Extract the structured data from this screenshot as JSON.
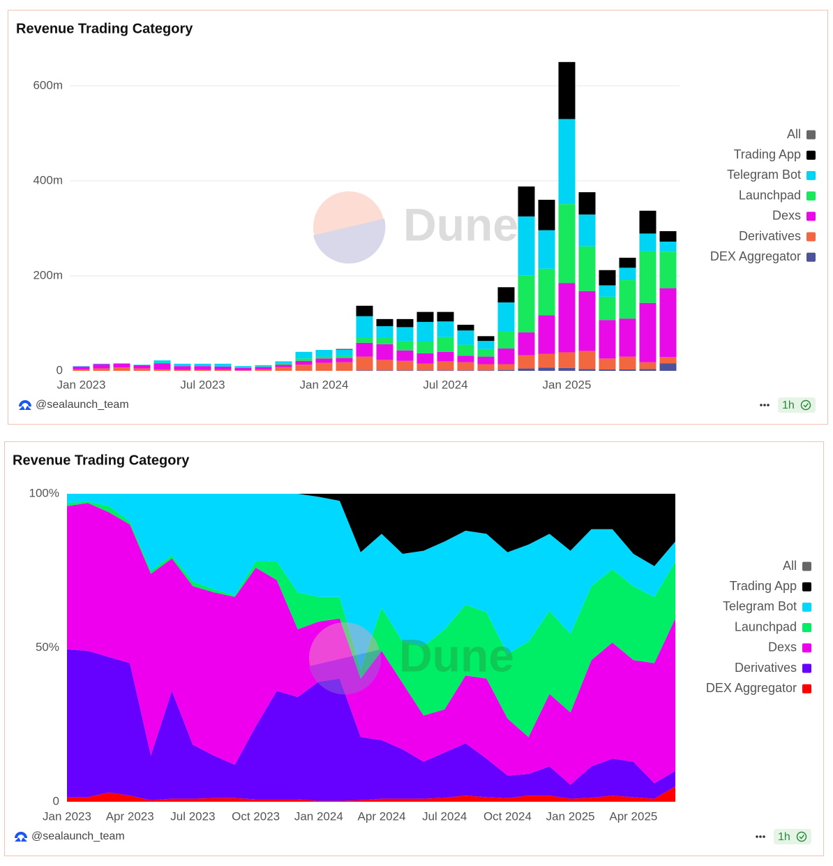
{
  "chart_data": [
    {
      "type": "bar",
      "stacked": true,
      "title": "Revenue Trading Category",
      "categories": [
        "Jan 2023",
        null,
        null,
        null,
        null,
        null,
        "Jul 2023",
        null,
        null,
        null,
        null,
        null,
        "Jan 2024",
        null,
        null,
        null,
        null,
        null,
        "Jul 2024",
        null,
        null,
        null,
        null,
        null,
        "Jan 2025",
        null,
        null,
        null,
        null,
        null
      ],
      "series": [
        {
          "name": "DEX Aggregator",
          "color": "#4d5399",
          "values": [
            0,
            0,
            0,
            0,
            0,
            0,
            0,
            0,
            0,
            0,
            0,
            0,
            0,
            0,
            1,
            1,
            1,
            1,
            1,
            1,
            1,
            2,
            5,
            7,
            6,
            4,
            3,
            3,
            4,
            16
          ]
        },
        {
          "name": "Derivatives",
          "color": "#f26640",
          "values": [
            3,
            5,
            7,
            5,
            3,
            2,
            2,
            2,
            1,
            3,
            8,
            13,
            17,
            18,
            29,
            22,
            20,
            14,
            19,
            17,
            13,
            12,
            28,
            29,
            33,
            38,
            23,
            27,
            14,
            13
          ]
        },
        {
          "name": "Dexs",
          "color": "#e80be8",
          "values": [
            6,
            9,
            8,
            7,
            13,
            8,
            8,
            7,
            5,
            5,
            5,
            8,
            9,
            9,
            29,
            33,
            22,
            22,
            20,
            14,
            16,
            33,
            48,
            81,
            146,
            126,
            81,
            80,
            125,
            145
          ]
        },
        {
          "name": "Launchpad",
          "color": "#17e85c",
          "values": [
            0,
            0,
            0,
            0,
            1,
            0,
            0,
            0,
            0,
            1,
            2,
            5,
            4,
            4,
            10,
            13,
            20,
            24,
            31,
            23,
            16,
            36,
            120,
            98,
            166,
            94,
            49,
            81,
            109,
            77
          ]
        },
        {
          "name": "Telegram Bot",
          "color": "#00d4f5",
          "values": [
            1,
            1,
            1,
            1,
            5,
            5,
            5,
            6,
            4,
            3,
            5,
            14,
            14,
            14,
            46,
            25,
            29,
            42,
            33,
            30,
            17,
            61,
            124,
            81,
            179,
            67,
            24,
            26,
            37,
            21
          ]
        },
        {
          "name": "Trading App",
          "color": "#000000",
          "values": [
            0,
            0,
            0,
            0,
            0,
            0,
            0,
            0,
            0,
            0,
            0,
            0,
            0,
            1,
            22,
            15,
            17,
            21,
            20,
            12,
            10,
            32,
            63,
            64,
            120,
            47,
            32,
            21,
            48,
            22
          ]
        }
      ],
      "ylim": [
        0,
        660
      ],
      "yticks": [
        0,
        {
          "value": 200,
          "label": "200m"
        },
        {
          "value": 400,
          "label": "400m"
        },
        {
          "value": 600,
          "label": "600m"
        }
      ],
      "grid": true,
      "legend_all": "All",
      "legend_all_color": "#666666",
      "legend": "right",
      "watermark": "Dune",
      "author": "@sealaunch_team",
      "refresh": "1h"
    },
    {
      "type": "area",
      "stacked": true,
      "title": "Revenue Trading Category",
      "categories": [
        "Jan 2023",
        null,
        null,
        "Apr 2023",
        null,
        null,
        "Jul 2023",
        null,
        null,
        "Oct 2023",
        null,
        null,
        "Jan 2024",
        null,
        null,
        "Apr 2024",
        null,
        null,
        "Jul 2024",
        null,
        null,
        "Oct 2024",
        null,
        null,
        "Jan 2025",
        null,
        null,
        "Apr 2025",
        null,
        null
      ],
      "series": [
        {
          "name": "DEX Aggregator",
          "color": "#ff0000",
          "values": [
            1.5,
            1.5,
            3,
            2,
            0.5,
            1,
            1,
            1.2,
            1.2,
            0.8,
            0.8,
            0.8,
            0.3,
            0.3,
            0.5,
            1,
            1,
            1,
            1.3,
            2,
            1.5,
            1.2,
            2,
            2,
            1,
            1.3,
            2,
            1.5,
            1,
            5
          ]
        },
        {
          "name": "Derivatives",
          "color": "#6600ff",
          "values": [
            48,
            47.5,
            44,
            43,
            14.5,
            35,
            17.5,
            13.8,
            10.8,
            23.7,
            35.2,
            33.2,
            38.7,
            39.7,
            20.5,
            19,
            16,
            12,
            14.7,
            17,
            12.5,
            7.3,
            7,
            9.5,
            4.5,
            10.2,
            12,
            11.5,
            5,
            5
          ]
        },
        {
          "name": "Dexs",
          "color": "#ee00ee",
          "values": [
            46.5,
            48,
            47,
            45,
            59,
            43,
            51.5,
            53,
            54.5,
            51.5,
            36,
            22,
            19.5,
            19.5,
            19,
            29,
            21.5,
            15,
            14,
            22,
            26,
            18.5,
            12,
            23.5,
            23.5,
            34.5,
            37.7,
            33,
            39,
            49.5
          ]
        },
        {
          "name": "Launchpad",
          "color": "#00ee66",
          "values": [
            1,
            0.5,
            2,
            1,
            1,
            1,
            1.5,
            1,
            0.5,
            2,
            6,
            12,
            8,
            7,
            3,
            14,
            13.5,
            22.5,
            26,
            23,
            21.5,
            21,
            31,
            27,
            25.5,
            24,
            23.8,
            24,
            21.5,
            18.5
          ]
        },
        {
          "name": "Telegram Bot",
          "color": "#00d8ff",
          "values": [
            3,
            2.5,
            4,
            9,
            25,
            20,
            28.5,
            31,
            33,
            22,
            22,
            32,
            32.5,
            31.2,
            38,
            24,
            28.5,
            31,
            28.5,
            24,
            25.5,
            33,
            31.5,
            25,
            27,
            18.5,
            13,
            10.5,
            10,
            6.5
          ]
        },
        {
          "name": "Trading App",
          "color": "#000000",
          "values": [
            0,
            0,
            0,
            0,
            0,
            0,
            0,
            0,
            0,
            0,
            0,
            0,
            1,
            2.3,
            19,
            13,
            19.5,
            18.5,
            15.5,
            12,
            13,
            19,
            16.5,
            13,
            18.5,
            11.5,
            11.5,
            19.5,
            23.5,
            15.5
          ]
        }
      ],
      "ylim": [
        0,
        100
      ],
      "yticks": [
        0,
        {
          "value": 50,
          "label": "50%"
        },
        {
          "value": 100,
          "label": "100%"
        }
      ],
      "grid": false,
      "legend_all": "All",
      "legend_all_color": "#666666",
      "legend": "right",
      "watermark": "Dune",
      "author": "@sealaunch_team",
      "refresh": "1h"
    }
  ]
}
